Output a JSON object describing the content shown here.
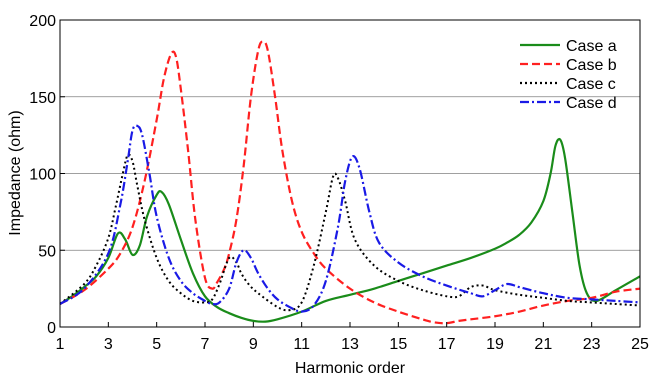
{
  "chart_data": {
    "type": "line",
    "xlabel": "Harmonic order",
    "ylabel": "Impedance (ohm)",
    "xlim": [
      1,
      25
    ],
    "ylim": [
      0,
      200
    ],
    "xticks": [
      1,
      3,
      5,
      7,
      9,
      11,
      13,
      15,
      17,
      19,
      21,
      23,
      25
    ],
    "yticks": [
      0,
      50,
      100,
      150,
      200
    ],
    "grid": "horizontal",
    "legend_position": "top-right",
    "series": [
      {
        "name": "Case a",
        "color": "#1a8c1a",
        "style": "solid",
        "x": [
          1,
          1.5,
          2,
          2.5,
          3,
          3.4,
          3.7,
          4.0,
          4.3,
          4.6,
          5.0,
          5.2,
          5.5,
          6.0,
          6.5,
          7.0,
          7.5,
          8.0,
          8.5,
          9.0,
          9.5,
          10,
          11,
          12,
          13,
          14,
          15,
          16,
          17,
          18,
          19,
          19.5,
          20,
          20.5,
          21,
          21.3,
          21.5,
          21.7,
          21.9,
          22.2,
          22.5,
          22.8,
          23.2,
          24,
          25
        ],
        "y": [
          15,
          20,
          26,
          33,
          45,
          61,
          57,
          47,
          53,
          72,
          86,
          88,
          80,
          57,
          35,
          20,
          13,
          9,
          6,
          4,
          3.5,
          5,
          10,
          17,
          21,
          25,
          30,
          35,
          40,
          45,
          51,
          55,
          60,
          68,
          82,
          100,
          118,
          122,
          110,
          75,
          40,
          22,
          17,
          24,
          33
        ]
      },
      {
        "name": "Case b",
        "color": "#ff2020",
        "style": "dashed",
        "x": [
          1,
          2,
          3,
          3.5,
          4,
          4.5,
          5,
          5.3,
          5.6,
          5.8,
          6.0,
          6.3,
          6.6,
          7.0,
          7.3,
          7.5,
          7.8,
          8.0,
          8.3,
          8.6,
          8.9,
          9.2,
          9.4,
          9.6,
          9.9,
          10.2,
          10.6,
          11,
          11.5,
          12,
          13,
          14,
          15,
          16,
          16.5,
          17,
          17.5,
          18,
          19,
          20,
          21,
          22,
          23,
          24,
          25
        ],
        "y": [
          15,
          24,
          38,
          48,
          65,
          95,
          135,
          162,
          178,
          176,
          155,
          115,
          70,
          32,
          25,
          29,
          38,
          48,
          70,
          105,
          150,
          180,
          186,
          180,
          150,
          115,
          82,
          62,
          48,
          38,
          25,
          16,
          10,
          5,
          3,
          2.5,
          4,
          5,
          7,
          10,
          14,
          17,
          19,
          23,
          25
        ]
      },
      {
        "name": "Case c",
        "color": "#000000",
        "style": "dotted",
        "x": [
          1,
          2,
          2.5,
          3,
          3.3,
          3.6,
          3.8,
          4.0,
          4.2,
          4.5,
          5,
          5.5,
          6,
          6.5,
          7.0,
          7.3,
          7.6,
          8.0,
          8.3,
          8.5,
          8.8,
          9.2,
          10,
          10.5,
          11,
          11.5,
          12,
          12.3,
          12.5,
          12.8,
          13.2,
          14,
          15,
          16,
          17,
          17.5,
          18,
          18.5,
          19,
          20,
          21,
          22,
          23,
          24,
          25
        ],
        "y": [
          15,
          28,
          40,
          58,
          78,
          100,
          112,
          108,
          92,
          70,
          45,
          30,
          22,
          17,
          16,
          18,
          28,
          45,
          42,
          35,
          28,
          22,
          13,
          11,
          16,
          40,
          75,
          98,
          97,
          82,
          57,
          40,
          30,
          24,
          20,
          20,
          26,
          27,
          24,
          21,
          19,
          17,
          16,
          15,
          14
        ]
      },
      {
        "name": "Case d",
        "color": "#1a1ae6",
        "style": "dashdot",
        "x": [
          1,
          2,
          3,
          3.5,
          3.8,
          4.0,
          4.2,
          4.4,
          4.7,
          5.0,
          5.5,
          6.0,
          6.5,
          7.0,
          7.3,
          7.6,
          8.0,
          8.3,
          8.6,
          8.9,
          9.2,
          9.6,
          10,
          10.5,
          11,
          11.5,
          12,
          12.5,
          12.8,
          13.1,
          13.4,
          13.8,
          14.2,
          15,
          16,
          17,
          18,
          18.5,
          19,
          19.5,
          20,
          21,
          22,
          23,
          24,
          25
        ],
        "y": [
          15,
          25,
          48,
          80,
          108,
          128,
          131,
          125,
          100,
          72,
          45,
          30,
          22,
          17,
          15,
          16,
          25,
          42,
          50,
          45,
          35,
          25,
          18,
          13,
          10,
          14,
          30,
          65,
          95,
          111,
          103,
          75,
          55,
          42,
          33,
          27,
          22,
          20,
          24,
          28,
          26,
          22,
          19,
          18,
          17,
          16
        ]
      }
    ]
  }
}
